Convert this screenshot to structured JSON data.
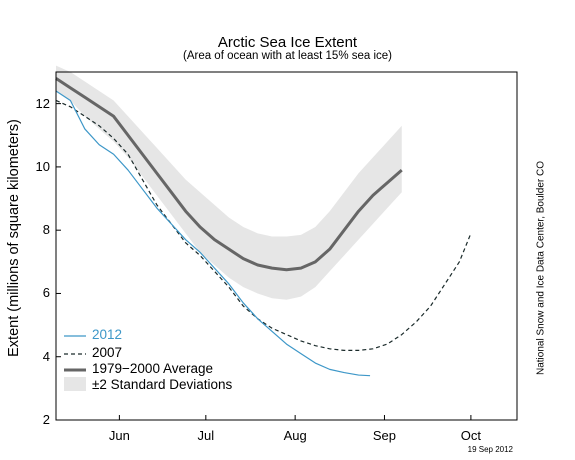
{
  "chart_data": {
    "type": "line",
    "title": "Arctic Sea Ice Extent",
    "subtitle": "(Area of ocean with at least 15% sea ice)",
    "ylabel": "Extent (millions of square kilometers)",
    "ylim": [
      2,
      13
    ],
    "yticks": [
      "2",
      "4",
      "6",
      "8",
      "10",
      "12"
    ],
    "xlim_day_of_year": [
      145,
      305
    ],
    "xticks": [
      {
        "label": "Jun",
        "day": 167
      },
      {
        "label": "Jul",
        "day": 197
      },
      {
        "label": "Aug",
        "day": 228
      },
      {
        "label": "Sep",
        "day": 259
      },
      {
        "label": "Oct",
        "day": 289
      }
    ],
    "series": [
      {
        "name": "2012",
        "color": "#3d97c8",
        "style": "solid",
        "points": [
          [
            145,
            12.4
          ],
          [
            150,
            12.1
          ],
          [
            155,
            11.2
          ],
          [
            160,
            10.7
          ],
          [
            165,
            10.4
          ],
          [
            170,
            9.9
          ],
          [
            175,
            9.3
          ],
          [
            180,
            8.7
          ],
          [
            185,
            8.2
          ],
          [
            190,
            7.7
          ],
          [
            195,
            7.3
          ],
          [
            200,
            6.8
          ],
          [
            205,
            6.3
          ],
          [
            210,
            5.7
          ],
          [
            215,
            5.2
          ],
          [
            220,
            4.8
          ],
          [
            225,
            4.4
          ],
          [
            230,
            4.1
          ],
          [
            235,
            3.8
          ],
          [
            240,
            3.6
          ],
          [
            245,
            3.5
          ],
          [
            250,
            3.42
          ],
          [
            254,
            3.4
          ]
        ]
      },
      {
        "name": "2007",
        "color": "#1a2a2a",
        "style": "dashed",
        "points": [
          [
            145,
            12.1
          ],
          [
            150,
            11.9
          ],
          [
            155,
            11.6
          ],
          [
            160,
            11.3
          ],
          [
            165,
            10.9
          ],
          [
            170,
            10.4
          ],
          [
            175,
            9.6
          ],
          [
            180,
            8.8
          ],
          [
            185,
            8.2
          ],
          [
            190,
            7.6
          ],
          [
            195,
            7.2
          ],
          [
            200,
            6.7
          ],
          [
            205,
            6.2
          ],
          [
            210,
            5.6
          ],
          [
            215,
            5.2
          ],
          [
            220,
            4.9
          ],
          [
            225,
            4.7
          ],
          [
            230,
            4.5
          ],
          [
            235,
            4.35
          ],
          [
            240,
            4.25
          ],
          [
            245,
            4.2
          ],
          [
            250,
            4.2
          ],
          [
            255,
            4.25
          ],
          [
            260,
            4.4
          ],
          [
            265,
            4.7
          ],
          [
            270,
            5.1
          ],
          [
            275,
            5.6
          ],
          [
            280,
            6.3
          ],
          [
            285,
            7.0
          ],
          [
            289,
            7.9
          ]
        ]
      },
      {
        "name": "1979−2000 Average",
        "color": "#666666",
        "style": "solid",
        "points": [
          [
            145,
            12.8
          ],
          [
            150,
            12.5
          ],
          [
            155,
            12.2
          ],
          [
            160,
            11.9
          ],
          [
            165,
            11.6
          ],
          [
            170,
            11.0
          ],
          [
            175,
            10.4
          ],
          [
            180,
            9.8
          ],
          [
            185,
            9.2
          ],
          [
            190,
            8.6
          ],
          [
            195,
            8.1
          ],
          [
            200,
            7.7
          ],
          [
            205,
            7.4
          ],
          [
            210,
            7.1
          ],
          [
            215,
            6.9
          ],
          [
            220,
            6.8
          ],
          [
            225,
            6.75
          ],
          [
            230,
            6.8
          ],
          [
            235,
            7.0
          ],
          [
            240,
            7.4
          ],
          [
            245,
            8.0
          ],
          [
            250,
            8.6
          ],
          [
            255,
            9.1
          ],
          [
            260,
            9.5
          ],
          [
            265,
            9.9
          ]
        ]
      }
    ],
    "band": {
      "name": "±2 Standard Deviations",
      "color": "#e6e6e6",
      "upper": [
        [
          145,
          13.2
        ],
        [
          150,
          13.0
        ],
        [
          155,
          12.7
        ],
        [
          160,
          12.4
        ],
        [
          165,
          12.1
        ],
        [
          170,
          11.6
        ],
        [
          175,
          11.1
        ],
        [
          180,
          10.6
        ],
        [
          185,
          10.1
        ],
        [
          190,
          9.6
        ],
        [
          195,
          9.2
        ],
        [
          200,
          8.8
        ],
        [
          205,
          8.4
        ],
        [
          210,
          8.1
        ],
        [
          215,
          7.9
        ],
        [
          220,
          7.8
        ],
        [
          225,
          7.8
        ],
        [
          230,
          7.85
        ],
        [
          235,
          8.1
        ],
        [
          240,
          8.6
        ],
        [
          245,
          9.2
        ],
        [
          250,
          9.8
        ],
        [
          255,
          10.3
        ],
        [
          260,
          10.8
        ],
        [
          265,
          11.3
        ]
      ],
      "lower": [
        [
          145,
          12.4
        ],
        [
          150,
          12.1
        ],
        [
          155,
          11.6
        ],
        [
          160,
          11.2
        ],
        [
          165,
          10.8
        ],
        [
          170,
          10.3
        ],
        [
          175,
          9.7
        ],
        [
          180,
          9.1
        ],
        [
          185,
          8.5
        ],
        [
          190,
          7.9
        ],
        [
          195,
          7.3
        ],
        [
          200,
          6.9
        ],
        [
          205,
          6.5
        ],
        [
          210,
          6.2
        ],
        [
          215,
          6.0
        ],
        [
          220,
          5.85
        ],
        [
          225,
          5.8
        ],
        [
          230,
          5.9
        ],
        [
          235,
          6.2
        ],
        [
          240,
          6.7
        ],
        [
          245,
          7.2
        ],
        [
          250,
          7.7
        ],
        [
          255,
          8.2
        ],
        [
          260,
          8.7
        ],
        [
          265,
          9.2
        ]
      ]
    },
    "legend_position": "bottom-left",
    "grid": false
  },
  "credit": "National Snow and Ice Data Center, Boulder CO",
  "date": "19 Sep 2012"
}
